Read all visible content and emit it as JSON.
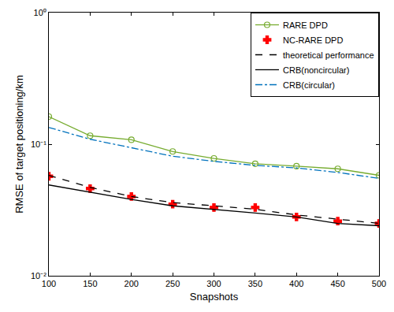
{
  "chart_data": {
    "type": "line",
    "x_label": "Snapshots",
    "y_label": "RMSE of target positioning/km",
    "x": [
      100,
      150,
      200,
      250,
      300,
      350,
      400,
      450,
      500
    ],
    "xlim": [
      100,
      500
    ],
    "xticks": [
      100,
      150,
      200,
      250,
      300,
      350,
      400,
      450,
      500
    ],
    "ylim": [
      0.01,
      1
    ],
    "yticks": [
      {
        "value": 0.01,
        "label": "10⁻²"
      },
      {
        "value": 0.1,
        "label": "10⁻¹"
      },
      {
        "value": 1,
        "label": "10⁰"
      }
    ],
    "log": "y",
    "grid": false,
    "legend": "top right",
    "series": [
      {
        "name": "RARE DPD",
        "color": "#77ac30",
        "marker": "circle-open",
        "line_style": "solid",
        "values": [
          0.162,
          0.116,
          0.108,
          0.088,
          0.078,
          0.071,
          0.068,
          0.065,
          0.058
        ]
      },
      {
        "name": "NC-RARE DPD",
        "color": "#ff0000",
        "marker": "cross",
        "line_style": "none",
        "values": [
          0.057,
          0.046,
          0.04,
          0.035,
          0.033,
          0.033,
          0.028,
          0.026,
          0.025
        ]
      },
      {
        "name": "theoretical performance",
        "color": "#000000",
        "marker": "none",
        "line_style": "dash",
        "values": [
          0.058,
          0.047,
          0.04,
          0.036,
          0.034,
          0.032,
          0.029,
          0.027,
          0.025
        ]
      },
      {
        "name": "CRB(noncircular)",
        "color": "#000000",
        "marker": "none",
        "line_style": "solid",
        "values": [
          0.049,
          0.043,
          0.038,
          0.034,
          0.032,
          0.03,
          0.028,
          0.025,
          0.024
        ]
      },
      {
        "name": "CRB(circular)",
        "color": "#0072bd",
        "marker": "none",
        "line_style": "dashdot",
        "values": [
          0.134,
          0.109,
          0.094,
          0.081,
          0.074,
          0.069,
          0.066,
          0.061,
          0.055
        ]
      }
    ]
  }
}
